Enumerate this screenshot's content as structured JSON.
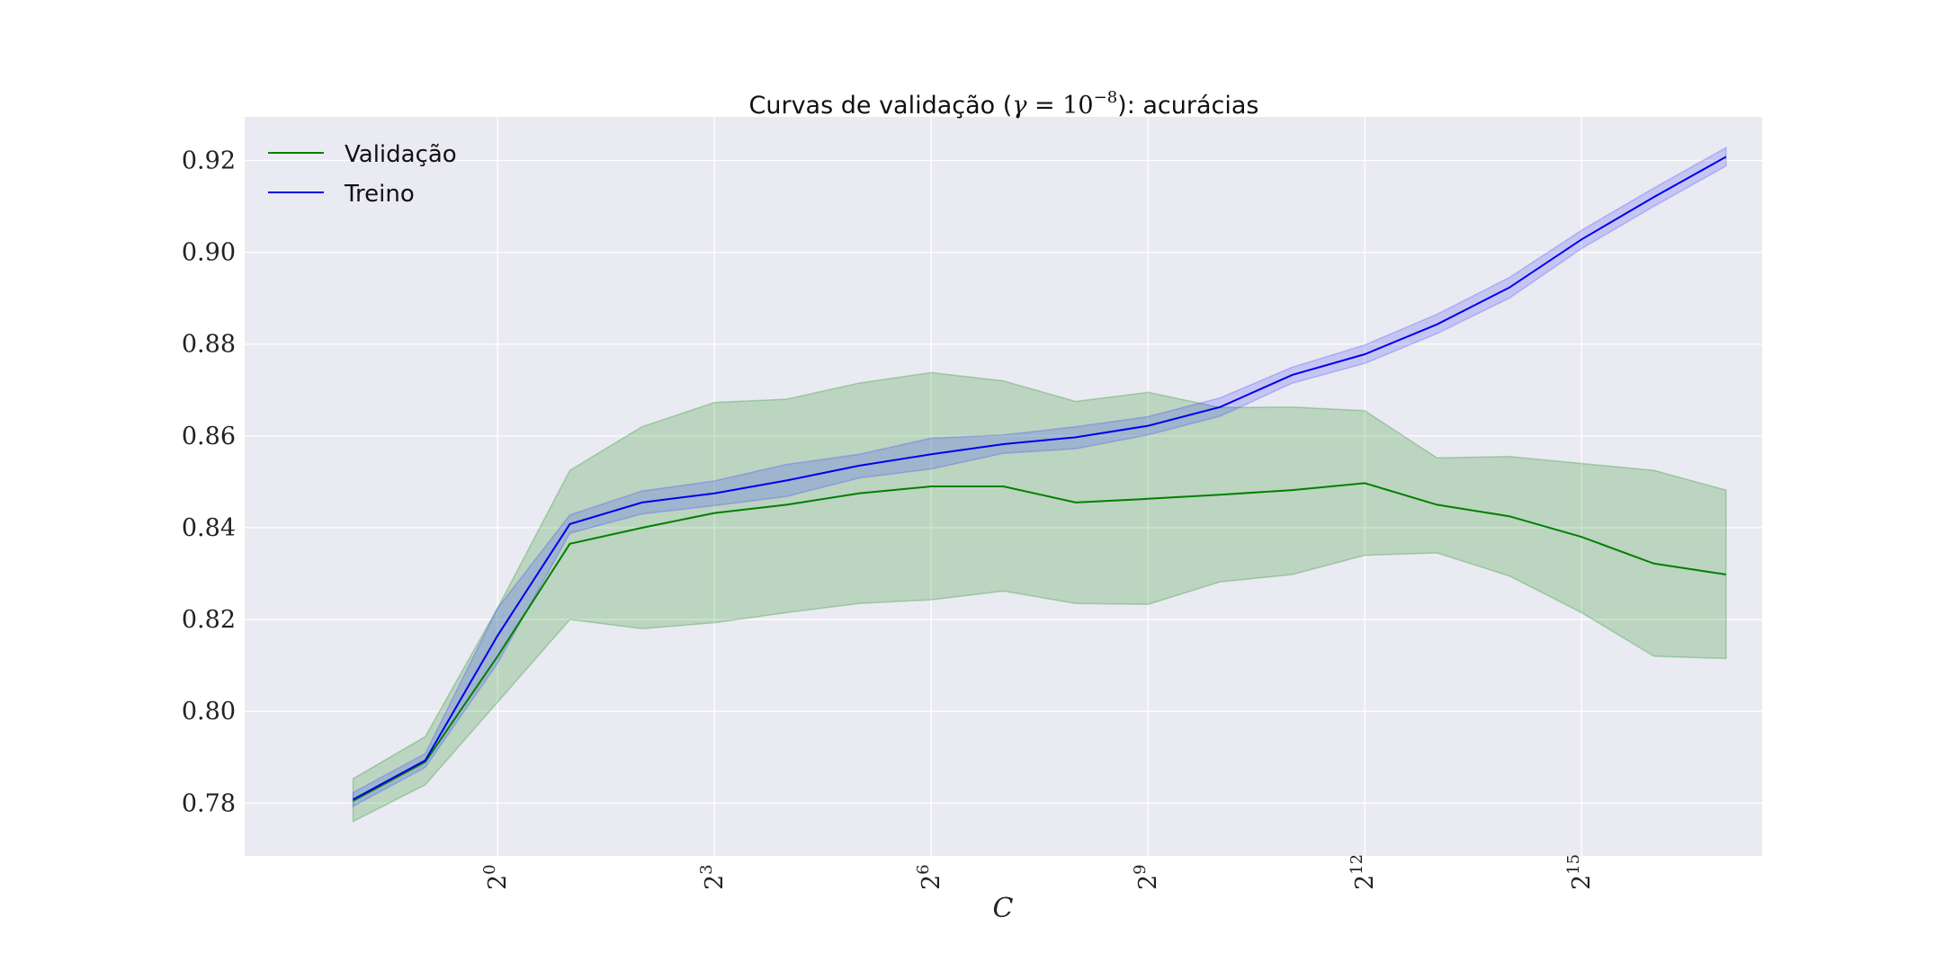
{
  "chart_data": {
    "type": "line",
    "title": {
      "prefix": "Curvas de validação (",
      "math_symbol": "γ",
      "math_rest": " = 10",
      "math_exp": "−8",
      "suffix": "): acurácias"
    },
    "xlabel": "C",
    "x_scale": "log2",
    "x_tick_labels": [
      {
        "x": 1,
        "base": "2",
        "exp": "0"
      },
      {
        "x": 8,
        "base": "2",
        "exp": "3"
      },
      {
        "x": 64,
        "base": "2",
        "exp": "6"
      },
      {
        "x": 512,
        "base": "2",
        "exp": "9"
      },
      {
        "x": 4096,
        "base": "2",
        "exp": "12"
      },
      {
        "x": 32768,
        "base": "2",
        "exp": "15"
      }
    ],
    "xlim": [
      0.0884,
      185364
    ],
    "ylim": [
      0.7685,
      0.9295
    ],
    "y_ticks": [
      "0.78",
      "0.80",
      "0.82",
      "0.84",
      "0.86",
      "0.88",
      "0.90",
      "0.92"
    ],
    "grid": true,
    "legend_position": "top-left",
    "x": [
      0.25,
      0.5,
      1,
      2,
      4,
      8,
      16,
      32,
      64,
      128,
      256,
      512,
      1024,
      2048,
      4096,
      8192,
      16384,
      32768,
      65536,
      131072
    ],
    "series": [
      {
        "name": "Validação",
        "color": "#008000",
        "band_color": "#008000",
        "values": [
          0.7805,
          0.789,
          0.812,
          0.8365,
          0.84,
          0.8432,
          0.845,
          0.8475,
          0.849,
          0.849,
          0.8455,
          0.8463,
          0.8472,
          0.8482,
          0.8497,
          0.845,
          0.8425,
          0.838,
          0.8322,
          0.8298
        ],
        "upper": [
          0.7853,
          0.7945,
          0.8225,
          0.8525,
          0.862,
          0.8673,
          0.868,
          0.8715,
          0.8738,
          0.872,
          0.8675,
          0.8695,
          0.8662,
          0.8663,
          0.8655,
          0.8552,
          0.8555,
          0.854,
          0.8525,
          0.8482
        ],
        "lower": [
          0.776,
          0.784,
          0.802,
          0.82,
          0.818,
          0.8193,
          0.8215,
          0.8235,
          0.8243,
          0.8262,
          0.8235,
          0.8233,
          0.8282,
          0.8298,
          0.834,
          0.8345,
          0.8295,
          0.8215,
          0.812,
          0.8115
        ]
      },
      {
        "name": "Treino",
        "color": "#0000ee",
        "band_color": "#3333ff",
        "values": [
          0.7808,
          0.7893,
          0.8165,
          0.8408,
          0.8455,
          0.8475,
          0.8503,
          0.8535,
          0.856,
          0.8582,
          0.8597,
          0.8622,
          0.8663,
          0.8733,
          0.8778,
          0.8843,
          0.8923,
          0.9028,
          0.912,
          0.9208
        ],
        "upper": [
          0.7823,
          0.7908,
          0.8225,
          0.8428,
          0.848,
          0.8502,
          0.8538,
          0.856,
          0.8595,
          0.8602,
          0.862,
          0.8642,
          0.8683,
          0.875,
          0.8798,
          0.8865,
          0.8945,
          0.9048,
          0.914,
          0.9228
        ],
        "lower": [
          0.7793,
          0.7878,
          0.8105,
          0.8388,
          0.843,
          0.8448,
          0.8468,
          0.8508,
          0.8528,
          0.8562,
          0.8572,
          0.8602,
          0.8643,
          0.8715,
          0.8758,
          0.8823,
          0.89,
          0.9008,
          0.91,
          0.9188
        ]
      }
    ]
  }
}
